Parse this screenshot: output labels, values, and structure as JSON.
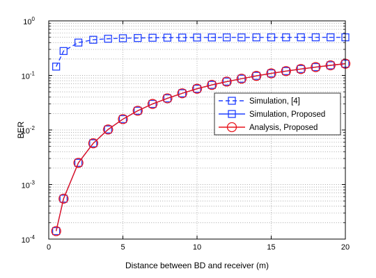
{
  "chart_data": {
    "type": "line",
    "xlabel": "Distance between BD and receiver (m)",
    "ylabel": "BER",
    "xlim": [
      0,
      20
    ],
    "ylim": [
      0.0001,
      1
    ],
    "yscale": "log",
    "grid": true,
    "legend_position": "right",
    "x_ticks": [
      0,
      5,
      10,
      15,
      20
    ],
    "y_ticks": [
      {
        "base": "10",
        "exp": "-4",
        "value": 0.0001
      },
      {
        "base": "10",
        "exp": "-3",
        "value": 0.001
      },
      {
        "base": "10",
        "exp": "-2",
        "value": 0.01
      },
      {
        "base": "10",
        "exp": "-1",
        "value": 0.1
      },
      {
        "base": "10",
        "exp": "0",
        "value": 1
      }
    ],
    "series": [
      {
        "name": "Simulation, [4]",
        "color": "#1f3fff",
        "line": "dashed",
        "marker": "square",
        "x": [
          0.5,
          1,
          2,
          3,
          4,
          5,
          6,
          7,
          8,
          9,
          10,
          11,
          12,
          13,
          14,
          15,
          16,
          17,
          18,
          19,
          20
        ],
        "y": [
          0.145,
          0.28,
          0.4,
          0.45,
          0.47,
          0.48,
          0.485,
          0.49,
          0.492,
          0.494,
          0.495,
          0.496,
          0.497,
          0.497,
          0.498,
          0.498,
          0.498,
          0.499,
          0.499,
          0.499,
          0.499
        ]
      },
      {
        "name": "Simulation, Proposed",
        "color": "#1f3fff",
        "line": "solid",
        "marker": "square",
        "x": [
          0.5,
          1,
          2,
          3,
          4,
          5,
          6,
          7,
          8,
          9,
          10,
          11,
          12,
          13,
          14,
          15,
          16,
          17,
          18,
          19,
          20
        ],
        "y": [
          0.00014,
          0.00055,
          0.0025,
          0.0057,
          0.0102,
          0.0158,
          0.0225,
          0.03,
          0.038,
          0.047,
          0.057,
          0.067,
          0.077,
          0.087,
          0.098,
          0.109,
          0.12,
          0.131,
          0.142,
          0.153,
          0.164
        ]
      },
      {
        "name": "Analysis, Proposed",
        "color": "#e8141c",
        "line": "solid",
        "marker": "circle",
        "x": [
          0.5,
          1,
          2,
          3,
          4,
          5,
          6,
          7,
          8,
          9,
          10,
          11,
          12,
          13,
          14,
          15,
          16,
          17,
          18,
          19,
          20
        ],
        "y": [
          0.00014,
          0.00055,
          0.0025,
          0.0057,
          0.0102,
          0.0158,
          0.0225,
          0.03,
          0.038,
          0.047,
          0.057,
          0.067,
          0.077,
          0.087,
          0.098,
          0.109,
          0.12,
          0.131,
          0.142,
          0.153,
          0.164
        ]
      }
    ]
  }
}
